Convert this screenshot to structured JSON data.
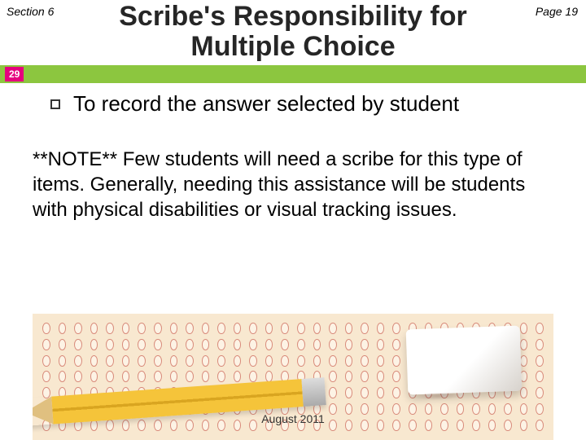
{
  "header": {
    "section_label": "Section 6",
    "page_label": "Page 19",
    "title": "Scribe's Responsibility for Multiple Choice",
    "slide_number": "29"
  },
  "bullet": {
    "text": "To record the answer selected by student"
  },
  "note": {
    "prefix": "**NOTE**",
    "body": "  Few students will need a scribe for this type of items.  Generally, needing this assistance will be students with physical disabilities or visual tracking issues."
  },
  "footer": {
    "date": "August  2011"
  },
  "style": {
    "accent_green": "#8cc63f",
    "accent_magenta": "#e6007e",
    "scantron_bg": "#f8e8d0",
    "bubble_border": "#d88a7a",
    "pencil_yellow": "#f5c43a"
  },
  "scantron": {
    "rows": 7,
    "bubbles_per_row": 32
  }
}
